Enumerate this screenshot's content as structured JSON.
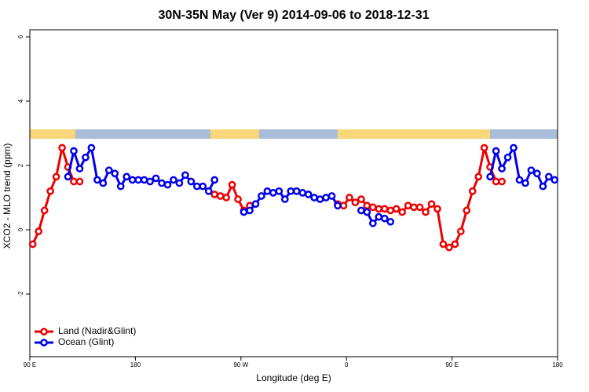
{
  "chart_data": {
    "type": "line",
    "title": "30N-35N May (Ver 9)   2014-09-06 to 2018-12-31",
    "x_label": "Longitude (deg E)",
    "y_label": "XCO2 - MLO trend (ppm)",
    "xlim": [
      90,
      540
    ],
    "xticks": [
      {
        "value": 90,
        "label": "90 E"
      },
      {
        "value": 180,
        "label": "180"
      },
      {
        "value": 270,
        "label": "90 W"
      },
      {
        "value": 360,
        "label": "0"
      },
      {
        "value": 450,
        "label": "90 E"
      },
      {
        "value": 540,
        "label": "180"
      }
    ],
    "ylim": [
      -3.95,
      6.22
    ],
    "yticks": [
      -2,
      0,
      2,
      4,
      6
    ],
    "legend": "bottom-left",
    "series": [
      {
        "name": "Land (Nadir&Glint)",
        "color": "#ee0000",
        "x": [
          92.5,
          97.5,
          102.5,
          107.5,
          112.5,
          117.5,
          122.5,
          127.5,
          132.5,
          137.5,
          247.5,
          252.5,
          257.5,
          262.5,
          267.5,
          272.5,
          277.5,
          282.5,
          352.5,
          357.5,
          362.5,
          367.5,
          372.5,
          377.5,
          382.5,
          387.5,
          392.5,
          397.5,
          402.5,
          407.5,
          412.5,
          417.5,
          422.5,
          427.5,
          432.5,
          437.5,
          442.5,
          447.5,
          452.5,
          457.5,
          462.5,
          467.5,
          472.5,
          477.5,
          482.5,
          487.5,
          492.5
        ],
        "values": [
          -0.45,
          -0.05,
          0.6,
          1.2,
          1.65,
          2.55,
          1.95,
          1.5,
          1.5,
          null,
          1.1,
          1.05,
          1.0,
          1.4,
          0.95,
          0.6,
          0.75,
          null,
          0.8,
          0.75,
          1.0,
          0.85,
          0.95,
          0.75,
          0.7,
          0.65,
          0.65,
          0.6,
          0.65,
          0.55,
          0.75,
          0.7,
          0.7,
          0.55,
          0.8,
          0.65,
          -0.45,
          -0.55,
          -0.45,
          -0.05,
          0.6,
          1.2,
          1.65,
          2.55,
          1.95,
          1.5,
          1.5
        ]
      },
      {
        "name": "Ocean (Glint)",
        "color": "#0000ee",
        "x": [
          122.5,
          127.5,
          132.5,
          137.5,
          142.5,
          147.5,
          152.5,
          157.5,
          162.5,
          167.5,
          172.5,
          177.5,
          182.5,
          187.5,
          192.5,
          197.5,
          202.5,
          207.5,
          212.5,
          217.5,
          222.5,
          227.5,
          232.5,
          237.5,
          242.5,
          247.5,
          252.5,
          272.5,
          277.5,
          282.5,
          287.5,
          292.5,
          297.5,
          302.5,
          307.5,
          312.5,
          317.5,
          322.5,
          327.5,
          332.5,
          337.5,
          342.5,
          347.5,
          352.5,
          357.5,
          372.5,
          377.5,
          382.5,
          387.5,
          392.5,
          397.5,
          402.5,
          482.5,
          487.5,
          492.5,
          497.5,
          502.5,
          507.5,
          512.5,
          517.5,
          522.5,
          527.5,
          532.5,
          537.5
        ],
        "values": [
          1.65,
          2.45,
          1.9,
          2.25,
          2.55,
          1.55,
          1.45,
          1.85,
          1.75,
          1.35,
          1.65,
          1.55,
          1.55,
          1.55,
          1.5,
          1.6,
          1.45,
          1.4,
          1.55,
          1.45,
          1.7,
          1.5,
          1.35,
          1.35,
          1.2,
          1.55,
          null,
          0.55,
          0.6,
          0.8,
          1.05,
          1.2,
          1.15,
          1.2,
          0.95,
          1.2,
          1.2,
          1.15,
          1.1,
          1.0,
          0.95,
          1.0,
          1.05,
          0.75,
          null,
          0.6,
          0.55,
          0.2,
          0.4,
          0.35,
          0.25,
          null,
          1.65,
          2.45,
          1.9,
          2.25,
          2.55,
          1.55,
          1.45,
          1.85,
          1.75,
          1.35,
          1.65,
          1.55
        ]
      }
    ]
  }
}
